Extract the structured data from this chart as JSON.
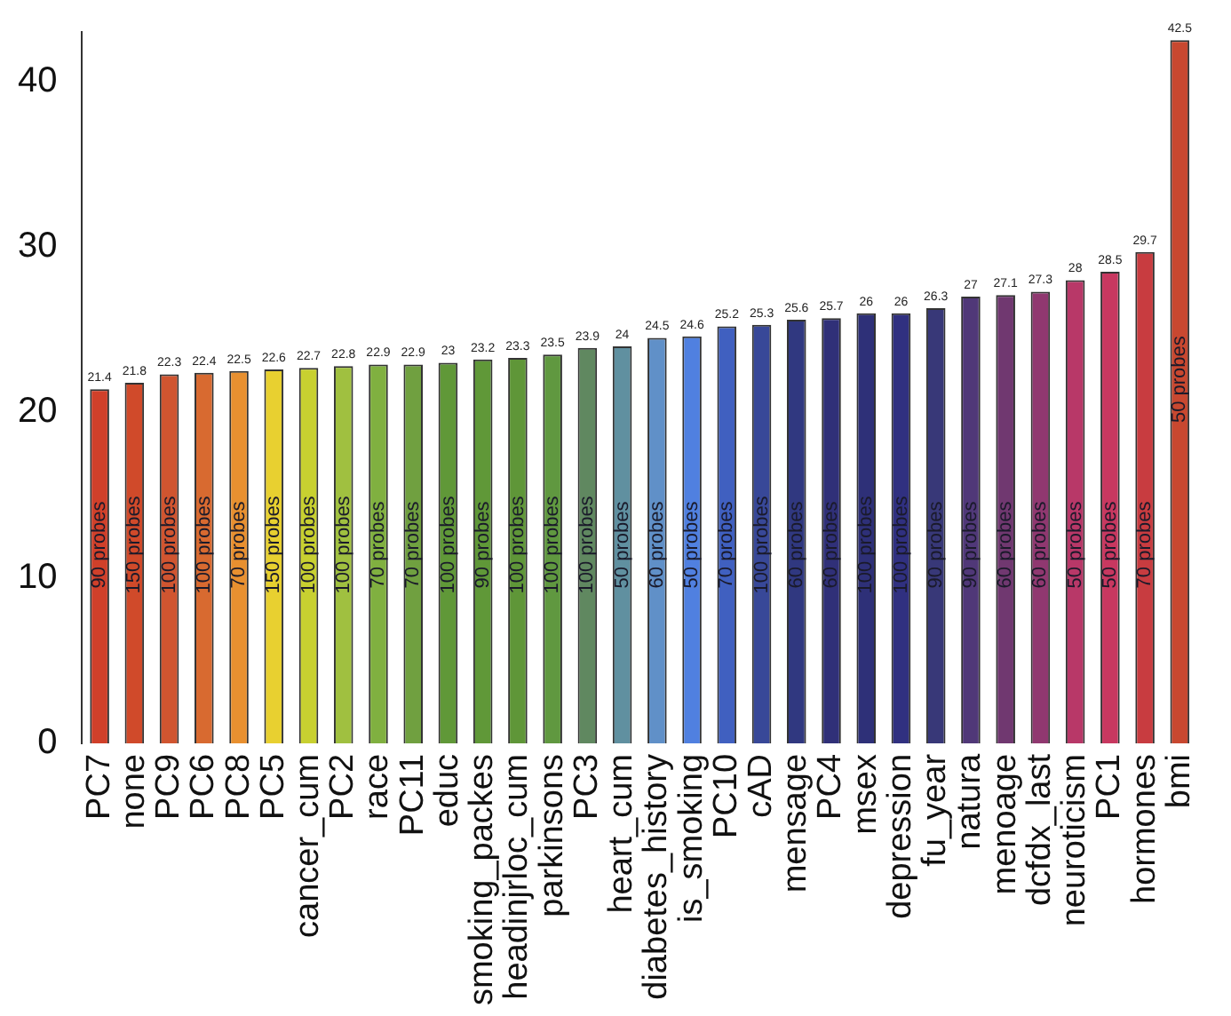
{
  "chart_data": {
    "type": "bar",
    "categories": [
      "PC7",
      "none",
      "PC9",
      "PC6",
      "PC8",
      "PC5",
      "cancer_cum",
      "PC2",
      "race",
      "PC11",
      "educ",
      "smoking_packes",
      "headinjrloc_cum",
      "parkinsons",
      "PC3",
      "heart_cum",
      "diabetes_history",
      "is_smoking",
      "PC10",
      "cAD",
      "mensage",
      "PC4",
      "msex",
      "depression",
      "fu_year",
      "natura",
      "menoage",
      "dcfdx_last",
      "neuroticism",
      "PC1",
      "hormones",
      "bmi"
    ],
    "values": [
      21.4,
      21.8,
      22.3,
      22.4,
      22.5,
      22.6,
      22.7,
      22.8,
      22.9,
      22.9,
      23,
      23.2,
      23.3,
      23.5,
      23.9,
      24,
      24.5,
      24.6,
      25.2,
      25.3,
      25.6,
      25.7,
      26,
      26,
      26.3,
      27,
      27.1,
      27.3,
      28,
      28.5,
      29.7,
      42.5
    ],
    "colors": [
      "#d0402a",
      "#d04a2a",
      "#d05530",
      "#d86a30",
      "#e89030",
      "#e8d030",
      "#c8d030",
      "#a0c040",
      "#80b040",
      "#70a040",
      "#609838",
      "#609838",
      "#5f9638",
      "#609840",
      "#608860",
      "#6090a0",
      "#6090c8",
      "#5080e0",
      "#4060c0",
      "#384898",
      "#303880",
      "#303078",
      "#2e3078",
      "#303080",
      "#383878",
      "#503878",
      "#703870",
      "#903870",
      "#b83868",
      "#c83860",
      "#c83c40",
      "#c84830"
    ],
    "ylim": [
      0,
      43
    ],
    "yticks": [
      0,
      10,
      20,
      30,
      40
    ],
    "grid": false,
    "legend": false,
    "data_labels": true,
    "annotations": [
      {
        "text": "90 probes",
        "x": "PC7",
        "y": 12
      },
      {
        "text": "150 probes",
        "x": "none",
        "y": 12
      },
      {
        "text": "100 probes",
        "x": "PC9",
        "y": 12
      },
      {
        "text": "100 probes",
        "x": "PC6",
        "y": 12
      },
      {
        "text": "70 probes",
        "x": "PC8",
        "y": 12
      },
      {
        "text": "150 probes",
        "x": "PC5",
        "y": 12
      },
      {
        "text": "100 probes",
        "x": "cancer_cum",
        "y": 12
      },
      {
        "text": "100 probes",
        "x": "PC2",
        "y": 12
      },
      {
        "text": "70 probes",
        "x": "race",
        "y": 12
      },
      {
        "text": "70 probes",
        "x": "PC11",
        "y": 12
      },
      {
        "text": "100 probes",
        "x": "educ",
        "y": 12
      },
      {
        "text": "90 probes",
        "x": "smoking_packes",
        "y": 12
      },
      {
        "text": "100 probes",
        "x": "headinjrloc_cum",
        "y": 12
      },
      {
        "text": "100 probes",
        "x": "parkinsons",
        "y": 12
      },
      {
        "text": "100 probes",
        "x": "PC3",
        "y": 12
      },
      {
        "text": "50 probes",
        "x": "heart_cum",
        "y": 12
      },
      {
        "text": "60 probes",
        "x": "diabetes_history",
        "y": 12
      },
      {
        "text": "50 probes",
        "x": "is_smoking",
        "y": 12
      },
      {
        "text": "70 probes",
        "x": "PC10",
        "y": 12
      },
      {
        "text": "100 probes",
        "x": "cAD",
        "y": 12
      },
      {
        "text": "60 probes",
        "x": "mensage",
        "y": 12
      },
      {
        "text": "60 probes",
        "x": "PC4",
        "y": 12
      },
      {
        "text": "100 probes",
        "x": "msex",
        "y": 12
      },
      {
        "text": "100 probes",
        "x": "depression",
        "y": 12
      },
      {
        "text": "90 probes",
        "x": "fu_year",
        "y": 12
      },
      {
        "text": "90 probes",
        "x": "natura",
        "y": 12
      },
      {
        "text": "60 probes",
        "x": "menoage",
        "y": 12
      },
      {
        "text": "60 probes",
        "x": "dcfdx_last",
        "y": 12
      },
      {
        "text": "50 probes",
        "x": "neuroticism",
        "y": 12
      },
      {
        "text": "50 probes",
        "x": "PC1",
        "y": 12
      },
      {
        "text": "70 probes",
        "x": "hormones",
        "y": 12
      },
      {
        "text": "50 probes",
        "x": "bmi",
        "y": 22
      }
    ]
  }
}
